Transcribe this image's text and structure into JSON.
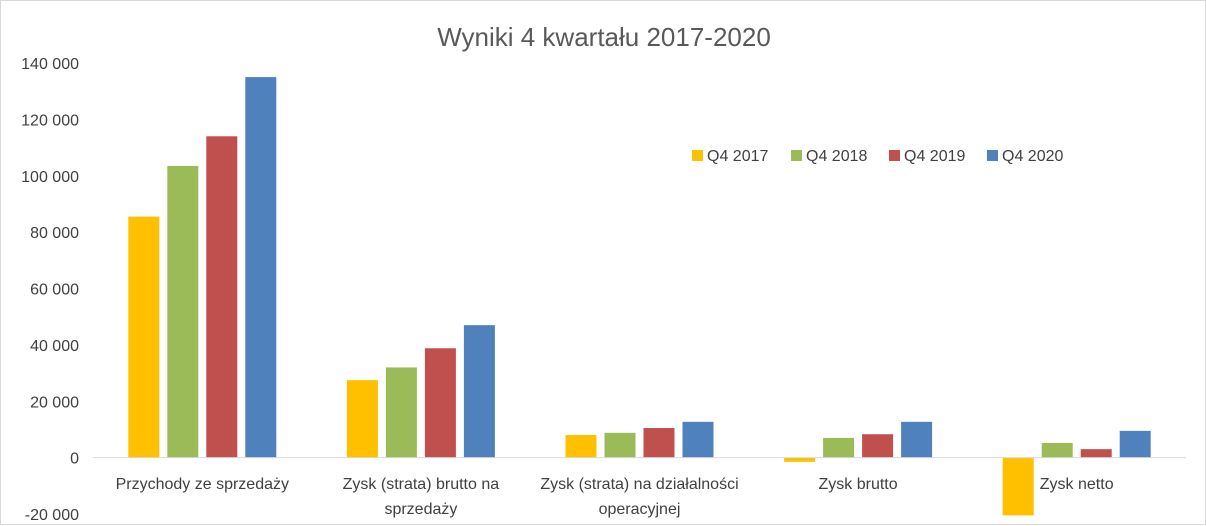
{
  "chart_data": {
    "type": "bar",
    "title": "Wyniki 4 kwartału 2017-2020",
    "xlabel": "",
    "ylabel": "",
    "ylim": [
      -20000,
      140000
    ],
    "yticks": [
      140000,
      120000,
      100000,
      80000,
      60000,
      40000,
      20000,
      0,
      -20000
    ],
    "ytick_labels": [
      "140 000",
      "120 000",
      "100 000",
      "80 000",
      "60 000",
      "40 000",
      "20 000",
      "0",
      "-20 000"
    ],
    "grid": false,
    "legend_position": "right",
    "categories": [
      [
        "Przychody ze sprzedaży"
      ],
      [
        "Zysk (strata) brutto na",
        "sprzedaży"
      ],
      [
        "Zysk (strata) na działalności",
        "operacyjnej"
      ],
      [
        "Zysk brutto"
      ],
      [
        "Zysk netto"
      ]
    ],
    "series": [
      {
        "name": "Q4 2017",
        "color": "#FFC000",
        "values": [
          85500,
          27500,
          8000,
          -1500,
          -20500
        ]
      },
      {
        "name": "Q4 2018",
        "color": "#9BBB59",
        "values": [
          103500,
          32000,
          8800,
          7000,
          5200
        ]
      },
      {
        "name": "Q4 2019",
        "color": "#C0504D",
        "values": [
          114000,
          38800,
          10500,
          8300,
          3000
        ]
      },
      {
        "name": "Q4 2020",
        "color": "#4F81BD",
        "values": [
          135000,
          47000,
          12700,
          12700,
          9500
        ]
      }
    ]
  }
}
